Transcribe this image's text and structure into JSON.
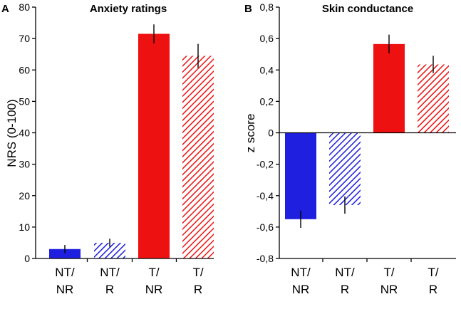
{
  "colors": {
    "blue": "#1f1fe0",
    "red": "#ee1111"
  },
  "chart_data": [
    {
      "panel": "A",
      "type": "bar",
      "title": "Anxiety ratings",
      "ylabel": "NRS (0-100)",
      "xlabel": "",
      "ylim": [
        0,
        80
      ],
      "yticks": [
        0,
        10,
        20,
        30,
        40,
        50,
        60,
        70,
        80
      ],
      "ytick_labels": [
        "0",
        "10",
        "20",
        "30",
        "40",
        "50",
        "60",
        "70",
        "80"
      ],
      "categories": [
        {
          "line1": "NT/",
          "line2": "NR"
        },
        {
          "line1": "NT/",
          "line2": "R"
        },
        {
          "line1": "T/",
          "line2": "NR"
        },
        {
          "line1": "T/",
          "line2": "R"
        }
      ],
      "values": [
        3,
        5,
        71.5,
        64.5
      ],
      "errors": [
        1.3,
        1.3,
        3,
        3.8
      ],
      "fill": [
        "solid-blue",
        "hatch-blue",
        "solid-red",
        "hatch-red"
      ]
    },
    {
      "panel": "B",
      "type": "bar",
      "title": "Skin conductance",
      "ylabel": "z score",
      "xlabel": "",
      "ylim": [
        -0.8,
        0.8
      ],
      "yticks": [
        -0.8,
        -0.6,
        -0.4,
        -0.2,
        0,
        0.2,
        0.4,
        0.6,
        0.8
      ],
      "ytick_labels": [
        "-0,8",
        "-0,6",
        "-0,4",
        "-0,2",
        "0",
        "0,2",
        "0,4",
        "0,6",
        "0,8"
      ],
      "categories": [
        {
          "line1": "NT/",
          "line2": "NR"
        },
        {
          "line1": "NT/",
          "line2": "R"
        },
        {
          "line1": "T/",
          "line2": "NR"
        },
        {
          "line1": "T/",
          "line2": "R"
        }
      ],
      "values": [
        -0.55,
        -0.46,
        0.565,
        0.435
      ],
      "errors": [
        0.055,
        0.055,
        0.06,
        0.055
      ],
      "fill": [
        "solid-blue",
        "hatch-blue",
        "solid-red",
        "hatch-red"
      ]
    }
  ]
}
